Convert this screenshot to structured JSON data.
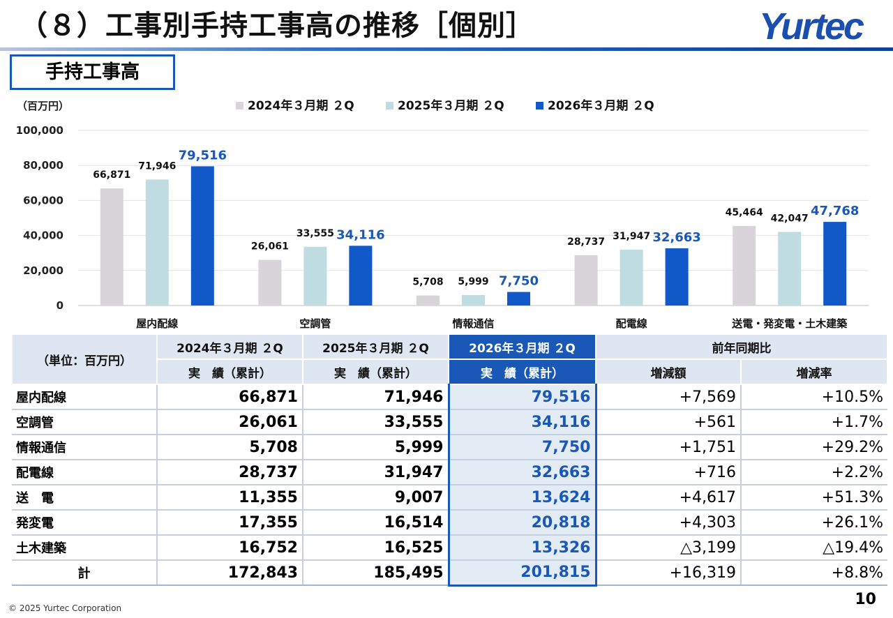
{
  "header": {
    "title": "（８）工事別手持工事高の推移［個別］",
    "logo_text": "Yurtec"
  },
  "section_label": "手持工事高",
  "chart_data": {
    "type": "bar",
    "title": "手持工事高",
    "ylabel": "（百万円）",
    "xlabel": "",
    "ylim": [
      0,
      100000
    ],
    "yticks": [
      0,
      20000,
      40000,
      60000,
      80000,
      100000
    ],
    "ytick_labels": [
      "0",
      "20,000",
      "40,000",
      "60,000",
      "80,000",
      "100,000"
    ],
    "grid": true,
    "legend_position": "top",
    "categories": [
      "屋内配線",
      "空調管",
      "情報通信",
      "配電線",
      "送電・発変電・土木建築"
    ],
    "series": [
      {
        "name": "2024年３月期 ２Q",
        "values": [
          66871,
          26061,
          5708,
          28737,
          45464
        ],
        "labels": [
          "66,871",
          "26,061",
          "5,708",
          "28,737",
          "45,464"
        ],
        "color": "#d9d3da"
      },
      {
        "name": "2025年３月期 ２Q",
        "values": [
          71946,
          33555,
          5999,
          31947,
          42047
        ],
        "labels": [
          "71,946",
          "33,555",
          "5,999",
          "31,947",
          "42,047"
        ],
        "color": "#bfdce0"
      },
      {
        "name": "2026年３月期 ２Q",
        "values": [
          79516,
          34116,
          7750,
          32663,
          47768
        ],
        "labels": [
          "79,516",
          "34,116",
          "7,750",
          "32,663",
          "47,768"
        ],
        "color": "#1158c9"
      }
    ]
  },
  "table": {
    "unit_label": "（単位：百万円）",
    "period_headers": [
      "2024年３月期 ２Q",
      "2025年３月期 ２Q",
      "2026年３月期 ２Q"
    ],
    "sub_headers": [
      "実　績（累計）",
      "実　績（累計）",
      "実　績（累計）"
    ],
    "comparison_header": "前年同期比",
    "comparison_sub": [
      "増減額",
      "増減率"
    ],
    "rows": [
      {
        "label": "屋内配線",
        "v2024": "66,871",
        "v2025": "71,946",
        "v2026": "79,516",
        "diff": "+7,569",
        "rate": "+10.5%"
      },
      {
        "label": "空調管",
        "v2024": "26,061",
        "v2025": "33,555",
        "v2026": "34,116",
        "diff": "+561",
        "rate": "+1.7%"
      },
      {
        "label": "情報通信",
        "v2024": "5,708",
        "v2025": "5,999",
        "v2026": "7,750",
        "diff": "+1,751",
        "rate": "+29.2%"
      },
      {
        "label": "配電線",
        "v2024": "28,737",
        "v2025": "31,947",
        "v2026": "32,663",
        "diff": "+716",
        "rate": "+2.2%"
      },
      {
        "label": "送　電",
        "v2024": "11,355",
        "v2025": "9,007",
        "v2026": "13,624",
        "diff": "+4,617",
        "rate": "+51.3%"
      },
      {
        "label": "発変電",
        "v2024": "17,355",
        "v2025": "16,514",
        "v2026": "20,818",
        "diff": "+4,303",
        "rate": "+26.1%"
      },
      {
        "label": "土木建築",
        "v2024": "16,752",
        "v2025": "16,525",
        "v2026": "13,326",
        "diff": "△3,199",
        "rate": "△19.4%"
      }
    ],
    "total": {
      "label": "計",
      "v2024": "172,843",
      "v2025": "185,495",
      "v2026": "201,815",
      "diff": "+16,319",
      "rate": "+8.8%"
    }
  },
  "footer": {
    "copyright": "© 2025 Yurtec Corporation",
    "page_number": "10"
  },
  "colors": {
    "accent": "#1a58b8",
    "header_bg": "#dfe6f1",
    "highlight_bg": "#e3ebf5"
  }
}
